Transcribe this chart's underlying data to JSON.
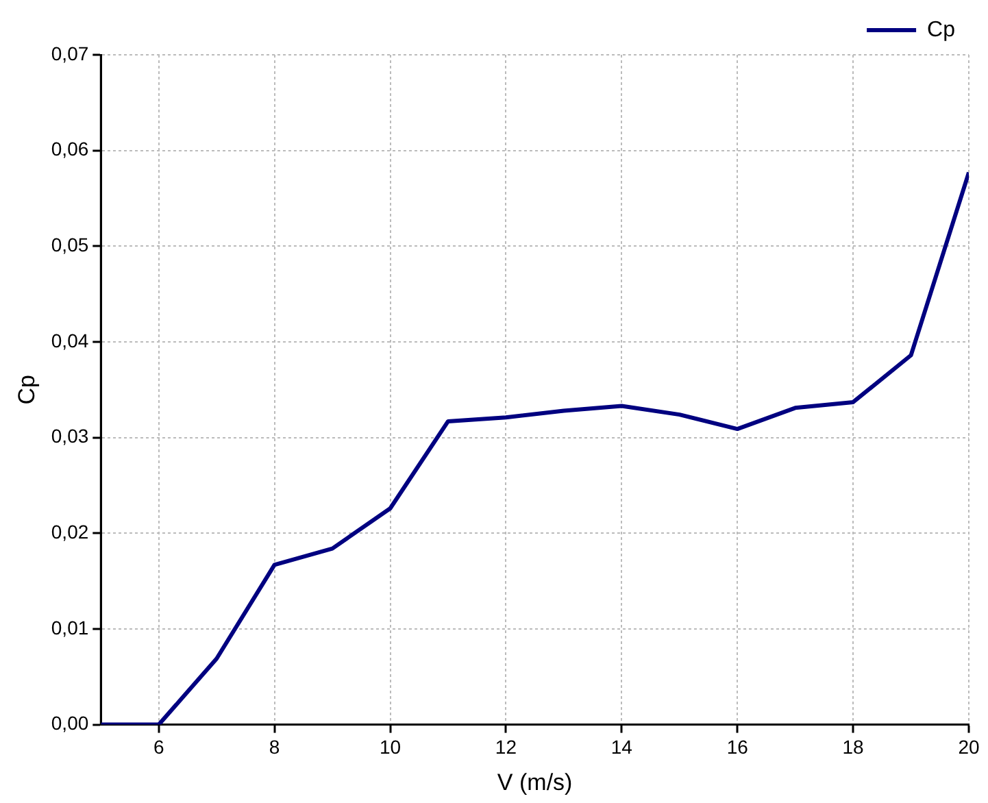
{
  "chart_data": {
    "type": "line",
    "xlabel": "V (m/s)",
    "ylabel": "Cp",
    "x": [
      5,
      6,
      7,
      8,
      9,
      10,
      11,
      12,
      13,
      14,
      15,
      16,
      17,
      18,
      19,
      20
    ],
    "series": [
      {
        "name": "Cp",
        "color": "#000080",
        "values": [
          0,
          0,
          0.0069,
          0.0167,
          0.0184,
          0.0226,
          0.0317,
          0.0321,
          0.0328,
          0.0333,
          0.0324,
          0.0309,
          0.0331,
          0.0337,
          0.0386,
          0.0577
        ]
      }
    ],
    "xlim": [
      5,
      20
    ],
    "xticks": [
      6,
      8,
      10,
      12,
      14,
      16,
      18,
      20
    ],
    "ylim": [
      0,
      0.07
    ],
    "yticks": [
      {
        "value": 0,
        "label": "0,00"
      },
      {
        "value": 0.01,
        "label": "0,01"
      },
      {
        "value": 0.02,
        "label": "0,02"
      },
      {
        "value": 0.03,
        "label": "0,03"
      },
      {
        "value": 0.04,
        "label": "0,04"
      },
      {
        "value": 0.05,
        "label": "0,05"
      },
      {
        "value": 0.06,
        "label": "0,06"
      },
      {
        "value": 0.07,
        "label": "0,07"
      }
    ],
    "grid": true,
    "legend": "top right",
    "marker": "none",
    "line_style": "solid"
  }
}
